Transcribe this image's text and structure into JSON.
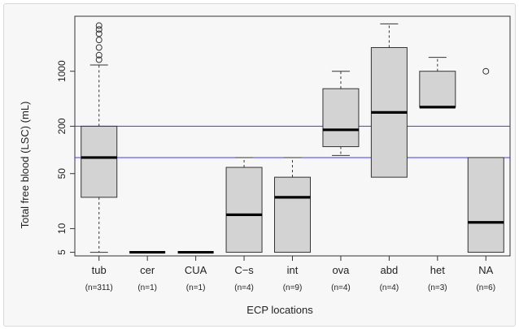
{
  "chart_data": {
    "type": "box",
    "xlabel": "ECP locations",
    "ylabel": "Total free blood (LSC) (mL)",
    "y_scale": "log",
    "ylim": [
      4.5,
      5000
    ],
    "y_ticks": [
      5,
      10,
      50,
      200,
      1000
    ],
    "y_tick_labels": [
      "5",
      "10",
      "50",
      "200",
      "1000"
    ],
    "reference_lines": [
      {
        "value": 200,
        "color": "#3b3bff"
      },
      {
        "value": 80,
        "color": "#3b3bff"
      }
    ],
    "box_fill": "#d3d3d3",
    "categories": [
      {
        "label": "tub",
        "n_label": "(n=311)",
        "min": 5,
        "q1": 25,
        "median": 80,
        "q3": 200,
        "max": 1200,
        "outliers": [
          1400,
          1600,
          2000,
          2500,
          3000,
          3400,
          3800
        ]
      },
      {
        "label": "cer",
        "n_label": "(n=1)",
        "min": 5,
        "q1": 5,
        "median": 5,
        "q3": 5,
        "max": 5,
        "outliers": []
      },
      {
        "label": "CUA",
        "n_label": "(n=1)",
        "min": 5,
        "q1": 5,
        "median": 5,
        "q3": 5,
        "max": 5,
        "outliers": []
      },
      {
        "label": "C−s",
        "n_label": "(n=4)",
        "min": 5,
        "q1": 5,
        "median": 15,
        "q3": 60,
        "max": 80,
        "outliers": []
      },
      {
        "label": "int",
        "n_label": "(n=9)",
        "min": 5,
        "q1": 5,
        "median": 25,
        "q3": 45,
        "max": 80,
        "outliers": []
      },
      {
        "label": "ova",
        "n_label": "(n=4)",
        "min": 85,
        "q1": 110,
        "median": 180,
        "q3": 600,
        "max": 1000,
        "outliers": []
      },
      {
        "label": "abd",
        "n_label": "(n=4)",
        "min": 45,
        "q1": 45,
        "median": 300,
        "q3": 2000,
        "max": 4000,
        "outliers": []
      },
      {
        "label": "het",
        "n_label": "(n=3)",
        "min": 350,
        "q1": 350,
        "median": 350,
        "q3": 1000,
        "max": 1500,
        "outliers": []
      },
      {
        "label": "NA",
        "n_label": "(n=6)",
        "min": 5,
        "q1": 5,
        "median": 12,
        "q3": 80,
        "max": 80,
        "outliers": [
          1000
        ]
      }
    ]
  }
}
